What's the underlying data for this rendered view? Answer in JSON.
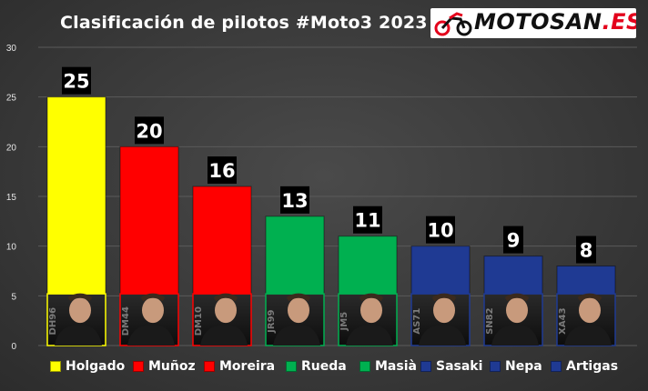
{
  "logo": {
    "text_main": "MOTOSAN",
    "text_ext": ".ES"
  },
  "chart_data": {
    "type": "bar",
    "title": "Clasificación de pilotos #Moto3 2023",
    "categories": [
      "Holgado",
      "Muñoz",
      "Moreira",
      "Rueda",
      "Masià",
      "Sasaki",
      "Nepa",
      "Artigas"
    ],
    "values": [
      25,
      20,
      16,
      13,
      11,
      10,
      9,
      8
    ],
    "rider_numbers": [
      "DH96",
      "DM44",
      "DM10",
      "JR99",
      "JM5",
      "AS71",
      "SN82",
      "XA43"
    ],
    "colors": [
      "#ffff00",
      "#ff0000",
      "#ff0000",
      "#00b050",
      "#00b050",
      "#1f3a93",
      "#1f3a93",
      "#1f3a93"
    ],
    "ylim": [
      0,
      30
    ],
    "yticks": [
      0,
      5,
      10,
      15,
      20,
      25,
      30
    ],
    "xlabel": "",
    "ylabel": "",
    "grid": true,
    "legend_position": "bottom"
  }
}
